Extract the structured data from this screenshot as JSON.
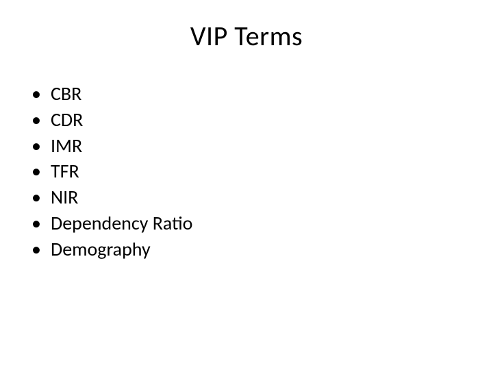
{
  "slide": {
    "title": "VIP Terms",
    "bullet_char": "•",
    "items": [
      {
        "text": "CBR"
      },
      {
        "text": "CDR"
      },
      {
        "text": "IMR"
      },
      {
        "text": "TFR"
      },
      {
        "text": "NIR"
      },
      {
        "text": "Dependency Ratio"
      },
      {
        "text": "Demography"
      }
    ],
    "title_fontsize": 40,
    "body_fontsize": 28,
    "background_color": "#ffffff",
    "text_color": "#000000"
  }
}
